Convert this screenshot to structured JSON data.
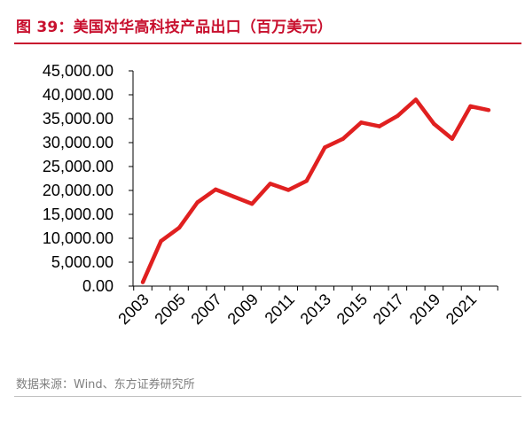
{
  "title": "图 39：美国对华高科技产品出口（百万美元）",
  "source": "数据来源：Wind、东方证券研究所",
  "colors": {
    "title": "#c8102e",
    "line": "#e02020",
    "axis": "#000000",
    "source": "#7f7f7f"
  },
  "chart_data": {
    "type": "line",
    "title": "",
    "xlabel": "",
    "ylabel": "",
    "ylim": [
      0,
      45000
    ],
    "grid": false,
    "legend": "none",
    "y_ticks": [
      0,
      5000,
      10000,
      15000,
      20000,
      25000,
      30000,
      35000,
      40000,
      45000
    ],
    "y_tick_labels": [
      "0.00",
      "5,000.00",
      "10,000.00",
      "15,000.00",
      "20,000.00",
      "25,000.00",
      "30,000.00",
      "35,000.00",
      "40,000.00",
      "45,000.00"
    ],
    "categories": [
      "2003",
      "2004",
      "2005",
      "2006",
      "2007",
      "2008",
      "2009",
      "2010",
      "2011",
      "2012",
      "2013",
      "2014",
      "2015",
      "2016",
      "2017",
      "2018",
      "2019",
      "2020",
      "2021",
      "2022"
    ],
    "x_tick_labels": [
      "2003",
      "2005",
      "2007",
      "2009",
      "2011",
      "2013",
      "2015",
      "2017",
      "2019",
      "2021"
    ],
    "series": [
      {
        "values": [
          800,
          9400,
          12200,
          17500,
          20200,
          18700,
          17200,
          21400,
          20100,
          22000,
          29000,
          30800,
          34200,
          33400,
          35600,
          39000,
          33900,
          30800,
          37600,
          36800
        ]
      }
    ]
  }
}
